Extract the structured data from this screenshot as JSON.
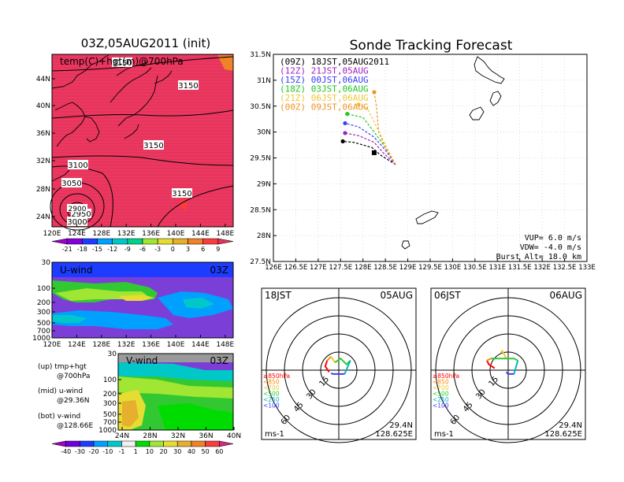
{
  "colors": {
    "background": "#ffffff",
    "frame": "#000000",
    "temp_fill": "#e8335c",
    "coast": "#000000"
  },
  "left_top": {
    "title": "03Z,05AUG2011 (init)",
    "label": "temp(C)+hgt(m)@700hPa",
    "contours": [
      "3150",
      "3150",
      "3150",
      "3150",
      "3100",
      "3050",
      "3000",
      "2950",
      "2900"
    ],
    "x_ticks": [
      "120E",
      "124E",
      "128E",
      "132E",
      "136E",
      "140E",
      "144E",
      "148E"
    ],
    "y_ticks": [
      "44N",
      "40N",
      "36N",
      "32N",
      "28N",
      "24N"
    ]
  },
  "colorbar_top": {
    "labels": [
      "-21",
      "-18",
      "-15",
      "-12",
      "-9",
      "-6",
      "-3",
      "0",
      "3",
      "6",
      "9"
    ],
    "colors": [
      "#a000c8",
      "#8200dc",
      "#1e3cff",
      "#00a0ff",
      "#00c8c8",
      "#00d28c",
      "#a0e632",
      "#e6dc32",
      "#e6af2d",
      "#f08228",
      "#fa3c3c",
      "#e8335c"
    ]
  },
  "uwind": {
    "label": "U-wind",
    "time": "03Z",
    "y_ticks": [
      "30",
      "100",
      "200",
      "300",
      "500",
      "700",
      "1000"
    ],
    "x_ticks": [
      "120E",
      "124E",
      "128E",
      "132E",
      "136E",
      "140E",
      "144E",
      "148E"
    ]
  },
  "vwind": {
    "label": "V-wind",
    "time": "03Z",
    "y_ticks": [
      "30",
      "100",
      "200",
      "300",
      "500",
      "700",
      "1000"
    ],
    "x_ticks": [
      "24N",
      "28N",
      "32N",
      "36N",
      "40N"
    ]
  },
  "notes": [
    {
      "line1": "(up) tmp+hgt",
      "line2": "@700hPa"
    },
    {
      "line1": "(mid) u-wind",
      "line2": "@29.36N"
    },
    {
      "line1": "(bot) v-wind",
      "line2": "@128.66E"
    }
  ],
  "colorbar_bottom": {
    "labels": [
      "-40",
      "-30",
      "-20",
      "-10",
      "-1",
      "1",
      "10",
      "20",
      "30",
      "40",
      "50",
      "60"
    ],
    "colors": [
      "#a000c8",
      "#6e00dc",
      "#1e3cff",
      "#00a0ff",
      "#00c8c8",
      "#f0f0f0",
      "#00dc00",
      "#a0e632",
      "#e6dc32",
      "#e6af2d",
      "#f08228",
      "#fa3c3c",
      "#d22882"
    ]
  },
  "chart_data": {
    "type": "line",
    "title": "Sonde Tracking Forecast",
    "xlabel": "",
    "ylabel": "",
    "x_ticks": [
      "126E",
      "126.5E",
      "127E",
      "127.5E",
      "128E",
      "128.5E",
      "129E",
      "129.5E",
      "130E",
      "130.5E",
      "131E",
      "131.5E",
      "132E",
      "132.5E",
      "133E"
    ],
    "y_ticks": [
      "31.5N",
      "31N",
      "30.5N",
      "30N",
      "29.5N",
      "29N",
      "28.5N",
      "28N",
      "27.5N"
    ],
    "xlim": [
      126,
      133
    ],
    "ylim": [
      27.5,
      31.5
    ],
    "grid": true,
    "legend_position": "top-left",
    "series": [
      {
        "name": "(09Z) 18JST,05AUG2011",
        "color": "#000000",
        "x": [
          128.73,
          128.4,
          128.2,
          127.8,
          127.55
        ],
        "y": [
          29.37,
          29.55,
          29.7,
          29.8,
          29.82
        ]
      },
      {
        "name": "(12Z) 21JST,05AUG",
        "color": "#a020c0",
        "x": [
          128.73,
          128.45,
          128.25,
          127.9,
          127.6
        ],
        "y": [
          29.37,
          29.6,
          29.8,
          29.93,
          29.98
        ]
      },
      {
        "name": "(15Z) 00JST,06AUG",
        "color": "#3c3cff",
        "x": [
          128.73,
          128.5,
          128.25,
          127.9,
          127.6
        ],
        "y": [
          29.37,
          29.65,
          29.9,
          30.1,
          30.17
        ]
      },
      {
        "name": "(18Z) 03JST,06AUG",
        "color": "#1ec81e",
        "x": [
          128.73,
          128.5,
          128.25,
          128.0,
          127.65
        ],
        "y": [
          29.37,
          29.7,
          30.0,
          30.28,
          30.35
        ]
      },
      {
        "name": "(21Z) 06JST,06AUG",
        "color": "#f0c832",
        "x": [
          128.73,
          128.5,
          128.3,
          128.1,
          127.9
        ],
        "y": [
          29.37,
          29.75,
          30.1,
          30.45,
          30.53
        ]
      },
      {
        "name": "(00Z) 09JST,06AUG",
        "color": "#f09628",
        "x": [
          128.73,
          128.5,
          128.35,
          128.3,
          128.25
        ],
        "y": [
          29.37,
          29.7,
          30.0,
          30.5,
          30.77
        ]
      }
    ],
    "launch_point": {
      "x": 128.25,
      "y": 29.6
    },
    "params": [
      "VUP= 6.0 m/s",
      "VDW= -4.0 m/s",
      "Burst Alt= 18.0 km"
    ]
  },
  "hodographs": [
    {
      "time": "18JST",
      "date": "05AUG",
      "rings": [
        "15",
        "30",
        "45",
        "60"
      ],
      "units": "ms-1",
      "lat": "29.4N",
      "lon": "128.625E",
      "levels": [
        "≥850hPa",
        "<850",
        "<700",
        "<500",
        "<250",
        "<100"
      ],
      "level_colors": [
        "#ff0000",
        "#ff8c00",
        "#f0c832",
        "#32c832",
        "#00b4c8",
        "#3c3cff"
      ],
      "segments": [
        {
          "color": "#ff0000",
          "points": [
            [
              -3.0,
              2.5
            ],
            [
              -3.5,
              1.0
            ],
            [
              -2.5,
              -0.5
            ]
          ]
        },
        {
          "color": "#ff8c00",
          "points": [
            [
              -3.0,
              2.5
            ],
            [
              -2.0,
              3.5
            ]
          ]
        },
        {
          "color": "#f0c832",
          "points": [
            [
              -2.0,
              3.5
            ],
            [
              -1.0,
              2.0
            ]
          ]
        },
        {
          "color": "#32c832",
          "points": [
            [
              -1.0,
              2.0
            ],
            [
              0.5,
              3.0
            ],
            [
              2.0,
              1.5
            ],
            [
              3.0,
              2.5
            ]
          ]
        },
        {
          "color": "#00b4c8",
          "points": [
            [
              3.0,
              2.5
            ],
            [
              1.5,
              -1.0
            ]
          ]
        },
        {
          "color": "#3c3cff",
          "points": [
            [
              1.5,
              -1.0
            ],
            [
              -1.5,
              -1.0
            ],
            [
              -2.0,
              -0.8
            ]
          ]
        }
      ]
    },
    {
      "time": "06JST",
      "date": "06AUG",
      "rings": [
        "15",
        "30",
        "45",
        "60"
      ],
      "units": "ms-1",
      "lat": "29.4N",
      "lon": "128.625E",
      "levels": [
        "≥850hPa",
        "<850",
        "<700",
        "<500",
        "<250",
        "<100"
      ],
      "level_colors": [
        "#ff0000",
        "#ff8c00",
        "#f0c832",
        "#32c832",
        "#00b4c8",
        "#3c3cff"
      ],
      "segments": [
        {
          "color": "#ff0000",
          "points": [
            [
              -5.5,
              2.5
            ],
            [
              -5.0,
              1.5
            ],
            [
              -3.5,
              0.5
            ]
          ]
        },
        {
          "color": "#ff8c00",
          "points": [
            [
              -5.5,
              2.5
            ],
            [
              -4.5,
              3.0
            ]
          ]
        },
        {
          "color": "#f0c832",
          "points": [
            [
              -2.0,
              4.5
            ],
            [
              -1.5,
              5.0
            ],
            [
              -0.5,
              3.0
            ]
          ]
        },
        {
          "color": "#32c832",
          "points": [
            [
              -4.5,
              3.0
            ],
            [
              -3.0,
              3.0
            ],
            [
              -0.5,
              3.0
            ],
            [
              1.5,
              3.0
            ],
            [
              2.5,
              2.5
            ]
          ]
        },
        {
          "color": "#00b4c8",
          "points": [
            [
              2.5,
              2.5
            ],
            [
              1.5,
              -1.0
            ]
          ]
        },
        {
          "color": "#3c3cff",
          "points": [
            [
              1.5,
              -1.0
            ],
            [
              0.0,
              -1.0
            ],
            [
              -0.5,
              -0.5
            ]
          ]
        }
      ]
    }
  ]
}
